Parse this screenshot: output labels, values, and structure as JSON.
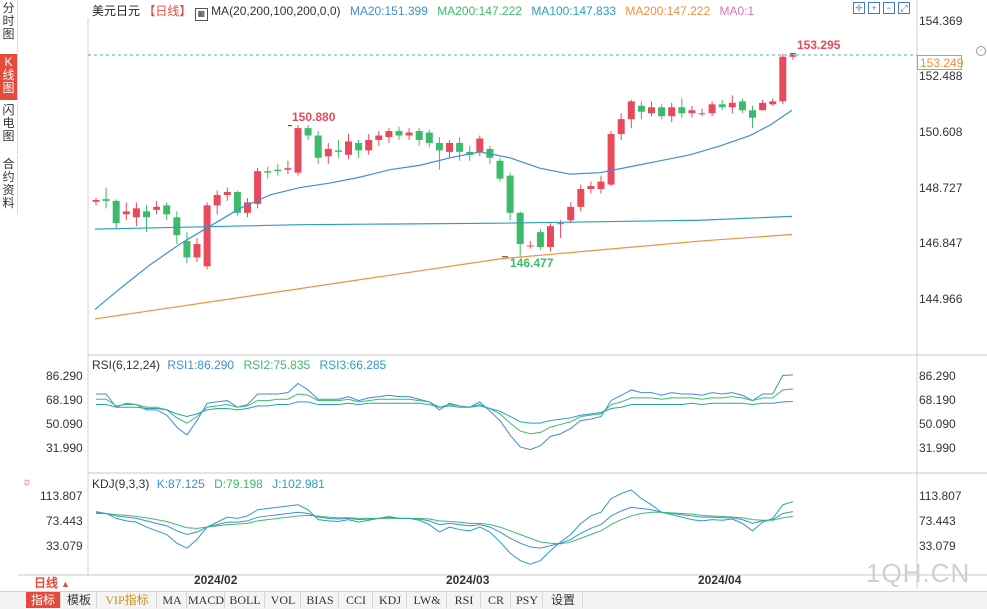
{
  "header": {
    "symbol": "美元日元",
    "period_label": "【日线】",
    "ma_label": "MA(20,200,100,200,0,0)",
    "ma20": "MA20:151.399",
    "ma200a": "MA200:147.222",
    "ma100": "MA100:147.833",
    "ma200b": "MA200:147.222",
    "ma0": "MA0:1"
  },
  "price_axis": [
    "154.369",
    "152.488",
    "150.608",
    "148.727",
    "146.847",
    "144.966"
  ],
  "current_price": "153.249",
  "annotations": {
    "high": "153.295",
    "peak": "150.880",
    "low": "146.477"
  },
  "rsi": {
    "title": "RSI(6,12,24)",
    "rsi1": "RSI1:86.290",
    "rsi2": "RSI2:75.835",
    "rsi3": "RSI3:66.285",
    "axis": [
      "86.290",
      "68.190",
      "50.090",
      "31.990"
    ]
  },
  "kdj": {
    "title": "KDJ(9,3,3)",
    "k": "K:87.125",
    "d": "D:79.198",
    "j": "J:102.981",
    "axis": [
      "113.807",
      "73.443",
      "33.079"
    ]
  },
  "dates": [
    "2024/02",
    "2024/03",
    "2024/04"
  ],
  "period_button": "日线",
  "watermark": "1QH.CN",
  "side_tabs": [
    "分时图",
    "K线图",
    "闪电图",
    "合约资料"
  ],
  "bottom_tabs": [
    "指标",
    "模板",
    "VIP指标",
    "MA",
    "MACD",
    "BOLL",
    "VOL",
    "BIAS",
    "CCI",
    "KDJ",
    "LW&",
    "RSI",
    "CR",
    "PSY",
    "设置"
  ],
  "colors": {
    "up": "#e8495b",
    "down": "#3dbb6c",
    "ma20": "#3d8fd6",
    "ma100": "#2a9fc0",
    "ma200": "#f09040",
    "rsi1": "#3d8fd6",
    "rsi2": "#3dbb6c",
    "rsi3": "#2a9fc0",
    "kdj_k": "#3d8fd6",
    "kdj_d": "#3dbb6c",
    "kdj_j": "#2a9fc0"
  },
  "candles": [
    [
      148.32,
      148.38,
      148.45,
      148.2
    ],
    [
      148.41,
      148.35,
      148.8,
      148.1
    ],
    [
      148.35,
      147.6,
      148.4,
      147.4
    ],
    [
      147.9,
      148.0,
      148.3,
      147.7
    ],
    [
      147.8,
      148.1,
      148.3,
      147.5
    ],
    [
      148.0,
      147.8,
      148.2,
      147.3
    ],
    [
      148.05,
      148.15,
      148.35,
      147.9
    ],
    [
      148.2,
      147.9,
      148.3,
      147.7
    ],
    [
      147.8,
      147.2,
      148.0,
      146.9
    ],
    [
      147.0,
      146.45,
      147.3,
      146.25
    ],
    [
      146.45,
      146.9,
      147.1,
      146.3
    ],
    [
      146.15,
      148.2,
      148.3,
      146.05
    ],
    [
      148.2,
      148.55,
      148.7,
      147.9
    ],
    [
      148.55,
      148.65,
      148.8,
      148.35
    ],
    [
      148.65,
      147.95,
      148.7,
      147.85
    ],
    [
      147.95,
      148.3,
      148.45,
      147.8
    ],
    [
      148.25,
      149.35,
      149.45,
      148.1
    ],
    [
      149.35,
      149.3,
      149.5,
      149.1
    ],
    [
      149.4,
      149.35,
      149.6,
      149.2
    ],
    [
      149.4,
      149.45,
      149.7,
      149.25
    ],
    [
      149.3,
      150.8,
      150.9,
      149.2
    ],
    [
      150.8,
      150.55,
      150.9,
      150.4
    ],
    [
      150.55,
      149.8,
      150.7,
      149.6
    ],
    [
      149.85,
      150.1,
      150.3,
      149.6
    ],
    [
      150.05,
      150.0,
      150.4,
      149.8
    ],
    [
      149.9,
      150.35,
      150.6,
      149.75
    ],
    [
      150.3,
      150.05,
      150.4,
      149.8
    ],
    [
      150.05,
      150.4,
      150.6,
      149.9
    ],
    [
      150.4,
      150.55,
      150.7,
      150.2
    ],
    [
      150.5,
      150.7,
      150.8,
      150.3
    ],
    [
      150.7,
      150.55,
      150.85,
      150.4
    ],
    [
      150.55,
      150.65,
      150.8,
      150.4
    ],
    [
      150.7,
      150.4,
      150.8,
      150.2
    ],
    [
      150.65,
      150.3,
      150.75,
      150.15
    ],
    [
      150.3,
      150.05,
      150.5,
      149.4
    ],
    [
      150.0,
      150.3,
      150.4,
      149.8
    ],
    [
      150.3,
      150.0,
      150.5,
      149.7
    ],
    [
      150.0,
      149.9,
      150.2,
      149.7
    ],
    [
      150.0,
      150.45,
      150.55,
      149.85
    ],
    [
      150.1,
      149.8,
      150.2,
      149.6
    ],
    [
      149.7,
      149.1,
      149.8,
      149.0
    ],
    [
      149.2,
      147.95,
      149.3,
      147.7
    ],
    [
      147.95,
      146.9,
      148.0,
      146.45
    ],
    [
      146.85,
      146.85,
      147.0,
      146.75
    ],
    [
      147.3,
      146.8,
      147.4,
      146.7
    ],
    [
      146.8,
      147.5,
      147.6,
      146.65
    ],
    [
      147.6,
      147.6,
      147.7,
      147.1
    ],
    [
      147.7,
      148.15,
      148.3,
      147.6
    ],
    [
      148.15,
      148.75,
      148.9,
      148.0
    ],
    [
      148.75,
      148.85,
      149.0,
      148.6
    ],
    [
      148.75,
      149.0,
      149.2,
      148.6
    ],
    [
      148.9,
      150.6,
      150.7,
      148.85
    ],
    [
      150.6,
      151.1,
      151.3,
      150.4
    ],
    [
      151.1,
      151.7,
      151.75,
      150.8
    ],
    [
      151.55,
      151.35,
      151.7,
      151.1
    ],
    [
      151.3,
      151.5,
      151.7,
      151.2
    ],
    [
      151.5,
      151.2,
      151.6,
      151.1
    ],
    [
      151.2,
      151.5,
      151.65,
      151.0
    ],
    [
      151.5,
      151.3,
      151.8,
      151.15
    ],
    [
      151.3,
      151.4,
      151.55,
      151.15
    ],
    [
      151.3,
      151.3,
      151.45,
      151.2
    ],
    [
      151.3,
      151.6,
      151.7,
      151.2
    ],
    [
      151.6,
      151.5,
      151.75,
      151.4
    ],
    [
      151.5,
      151.65,
      151.9,
      151.3
    ],
    [
      151.7,
      151.4,
      151.8,
      151.3
    ],
    [
      151.4,
      151.15,
      151.55,
      150.8
    ],
    [
      151.4,
      151.65,
      151.75,
      151.4
    ],
    [
      151.6,
      151.7,
      151.8,
      151.55
    ],
    [
      151.7,
      153.2,
      153.3,
      151.6
    ],
    [
      153.2,
      153.25,
      153.3,
      153.1
    ]
  ]
}
